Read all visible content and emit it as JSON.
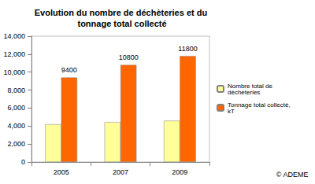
{
  "chart_data": {
    "type": "bar",
    "title": "Evolution du nombre de déchèteries et du tonnage total collecté",
    "categories": [
      "2005",
      "2007",
      "2009"
    ],
    "series": [
      {
        "name": "Nombre total de déchèteries",
        "color": "#ffff99",
        "values": [
          4200,
          4450,
          4600
        ],
        "data_labels": false
      },
      {
        "name": "Tonnage total collecté, kT",
        "color": "#ff6600",
        "values": [
          9400,
          10800,
          11800
        ],
        "data_labels": true
      }
    ],
    "ylim": [
      0,
      14000
    ],
    "yticks": [
      0,
      2000,
      4000,
      6000,
      8000,
      10000,
      12000,
      14000
    ],
    "grid": false,
    "legend": "right",
    "annotations": [
      "© ADEME"
    ]
  }
}
